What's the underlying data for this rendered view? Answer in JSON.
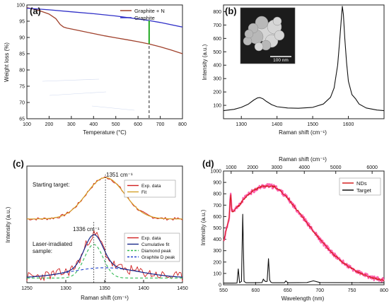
{
  "panels": {
    "a": {
      "label": "(a)"
    },
    "b": {
      "label": "(b)"
    },
    "c": {
      "label": "(c)"
    },
    "d": {
      "label": "(d)"
    }
  },
  "chart_data": [
    {
      "id": "a",
      "type": "line",
      "xlabel": "Temperature (°C)",
      "ylabel": "Weight loss (%)",
      "xlim": [
        100,
        800
      ],
      "ylim": [
        65,
        100
      ],
      "xticks": [
        100,
        200,
        300,
        400,
        500,
        600,
        700,
        800
      ],
      "yticks": [
        65,
        70,
        75,
        80,
        85,
        90,
        95,
        100
      ],
      "legend_position": "top-right",
      "marker_line_x": 650,
      "marker_segment": {
        "x": 650,
        "y_from": 88.0,
        "y_to": 95.2,
        "color": "#22aa22"
      },
      "series": [
        {
          "name": "Graphite + N",
          "color": "#a0412c",
          "x": [
            100,
            150,
            200,
            230,
            250,
            265,
            280,
            300,
            350,
            400,
            450,
            500,
            550,
            600,
            650,
            700,
            750,
            800
          ],
          "y": [
            99.2,
            98.4,
            97.2,
            95.8,
            94.0,
            93.2,
            92.9,
            92.6,
            91.9,
            91.2,
            90.5,
            89.9,
            89.3,
            88.7,
            88.0,
            87.1,
            86.1,
            85.0
          ]
        },
        {
          "name": "Graphite",
          "color": "#3030c8",
          "x": [
            100,
            200,
            300,
            400,
            500,
            600,
            650,
            700,
            800
          ],
          "y": [
            99.0,
            98.5,
            97.9,
            97.3,
            96.6,
            95.7,
            95.2,
            94.6,
            93.2
          ]
        }
      ]
    },
    {
      "id": "b",
      "type": "line",
      "xlabel": "Raman shift (cm⁻¹)",
      "ylabel": "Intensity (a.u.)",
      "xlim": [
        1250,
        1700
      ],
      "ylim": [
        0,
        850
      ],
      "xticks": [
        1300,
        1400,
        1500,
        1600
      ],
      "yticks": [
        100,
        200,
        300,
        400,
        500,
        600,
        700,
        800
      ],
      "inset": {
        "scale_bar": "100 nm"
      },
      "series": [
        {
          "name": "",
          "color": "#111111",
          "x": [
            1250,
            1280,
            1300,
            1320,
            1335,
            1345,
            1352,
            1360,
            1370,
            1385,
            1400,
            1430,
            1460,
            1500,
            1530,
            1550,
            1560,
            1570,
            1575,
            1580,
            1583,
            1586,
            1590,
            1595,
            1600,
            1610,
            1620,
            1630,
            1650,
            1680,
            1700
          ],
          "y": [
            60,
            70,
            85,
            110,
            140,
            155,
            158,
            150,
            130,
            105,
            90,
            80,
            78,
            85,
            110,
            160,
            230,
            400,
            560,
            740,
            840,
            780,
            600,
            420,
            280,
            180,
            150,
            110,
            80,
            65,
            60
          ]
        }
      ]
    },
    {
      "id": "c",
      "type": "line",
      "xlabel": "Raman shift (cm⁻¹)",
      "ylabel": "Intensity (a.u.)",
      "xlim": [
        1250,
        1450
      ],
      "xticks": [
        1250,
        1300,
        1350,
        1400,
        1450
      ],
      "annotations": [
        {
          "text": "Starting target:"
        },
        {
          "text": "1351 cm⁻¹"
        },
        {
          "text": "Laser-irradiated"
        },
        {
          "text": "sample:"
        },
        {
          "text": "1336 cm⁻¹"
        }
      ],
      "vlines": [
        1351,
        1336
      ],
      "top_legend": [
        {
          "name": "Exp. data",
          "color": "#d02020"
        },
        {
          "name": "Fit",
          "color": "#d4a12a"
        }
      ],
      "bottom_legend": [
        {
          "name": "Exp. data",
          "color": "#d02020",
          "style": "solid"
        },
        {
          "name": "Cumulative fit",
          "color": "#1a2a8a",
          "style": "solid"
        },
        {
          "name": "Diamond peak",
          "color": "#33bb55",
          "style": "dashed"
        },
        {
          "name": "Graphite D peak",
          "color": "#2244cc",
          "style": "dashed"
        }
      ],
      "top_peak": {
        "center": 1351,
        "width": 32,
        "base": 0.18,
        "amp": 0.74
      },
      "bottom_diamond": {
        "center": 1336,
        "width": 12,
        "amp": 0.72
      },
      "bottom_graphite": {
        "center": 1350,
        "width": 45,
        "amp": 0.22
      }
    },
    {
      "id": "d",
      "type": "line",
      "xlabel": "Wavelength (nm)",
      "ylabel": "Intensity (a.u.)",
      "top_xlabel": "Raman shift (cm⁻¹)",
      "xlim": [
        550,
        800
      ],
      "ylim": [
        0,
        1000
      ],
      "xticks": [
        550,
        600,
        650,
        700,
        750,
        800
      ],
      "yticks": [
        0,
        100,
        200,
        300,
        400,
        500,
        600,
        700,
        800,
        900,
        1000
      ],
      "top_xticks": [
        1000,
        2000,
        3000,
        4000,
        5000,
        6000
      ],
      "legend_position": "top-right",
      "series": [
        {
          "name": "NDs",
          "color": "#d42020",
          "x": [
            550,
            553,
            556,
            559,
            561,
            563,
            566,
            570,
            575,
            580,
            590,
            600,
            610,
            620,
            630,
            640,
            650,
            660,
            670,
            680,
            690,
            700,
            710,
            720,
            730,
            740,
            750,
            760,
            770,
            780,
            790,
            800
          ],
          "y": [
            380,
            450,
            520,
            600,
            810,
            650,
            640,
            680,
            700,
            745,
            800,
            840,
            865,
            870,
            860,
            820,
            760,
            690,
            620,
            545,
            470,
            400,
            335,
            275,
            225,
            180,
            140,
            110,
            85,
            65,
            50,
            40
          ]
        },
        {
          "name": "Target",
          "color": "#111111",
          "x": [
            550,
            565,
            571,
            573,
            575,
            578,
            580,
            582,
            585,
            600,
            610,
            612,
            614,
            616,
            618,
            620,
            622,
            624,
            626,
            640,
            645,
            647,
            650,
            680,
            690,
            700,
            800
          ],
          "y": [
            15,
            15,
            16,
            140,
            18,
            30,
            620,
            30,
            18,
            18,
            20,
            50,
            35,
            28,
            30,
            230,
            40,
            22,
            18,
            18,
            18,
            35,
            18,
            20,
            35,
            20,
            18
          ]
        }
      ]
    }
  ]
}
